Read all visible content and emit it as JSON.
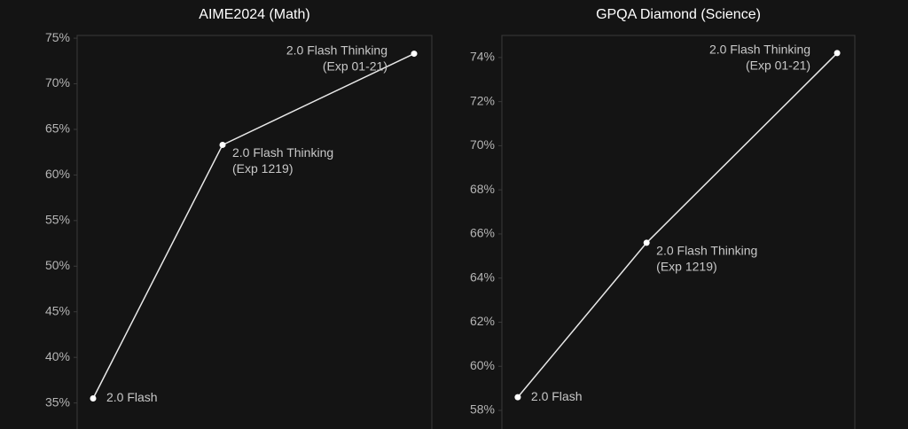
{
  "chart_data": [
    {
      "type": "line",
      "title": "AIME2024 (Math)",
      "color": "#e8e8e8",
      "categories": [
        [
          "2.0 Flash"
        ],
        [
          "2.0 Flash Thinking",
          "(Exp 1219)"
        ],
        [
          "2.0 Flash Thinking",
          "(Exp 01-21)"
        ]
      ],
      "values": [
        35.5,
        63.3,
        73.3
      ],
      "ylim": [
        33.7,
        75.3
      ],
      "yticks": [
        {
          "value": 35,
          "label": "35%"
        },
        {
          "value": 40,
          "label": "40%"
        },
        {
          "value": 45,
          "label": "45%"
        },
        {
          "value": 50,
          "label": "50%"
        },
        {
          "value": 55,
          "label": "55%"
        },
        {
          "value": 60,
          "label": "60%"
        },
        {
          "value": 65,
          "label": "65%"
        },
        {
          "value": 70,
          "label": "70%"
        },
        {
          "value": 75,
          "label": "75%"
        }
      ]
    },
    {
      "type": "line",
      "title": "GPQA Diamond (Science)",
      "color": "#e8e8e8",
      "categories": [
        [
          "2.0 Flash"
        ],
        [
          "2.0 Flash Thinking",
          "(Exp 1219)"
        ],
        [
          "2.0 Flash Thinking",
          "(Exp 01-21)"
        ]
      ],
      "values": [
        58.6,
        65.6,
        74.2
      ],
      "ylim": [
        57.8,
        75.0
      ],
      "yticks": [
        {
          "value": 58,
          "label": "58%"
        },
        {
          "value": 60,
          "label": "60%"
        },
        {
          "value": 62,
          "label": "62%"
        },
        {
          "value": 64,
          "label": "64%"
        },
        {
          "value": 66,
          "label": "66%"
        },
        {
          "value": 68,
          "label": "68%"
        },
        {
          "value": 70,
          "label": "70%"
        },
        {
          "value": 72,
          "label": "72%"
        },
        {
          "value": 74,
          "label": "74%"
        }
      ]
    }
  ]
}
